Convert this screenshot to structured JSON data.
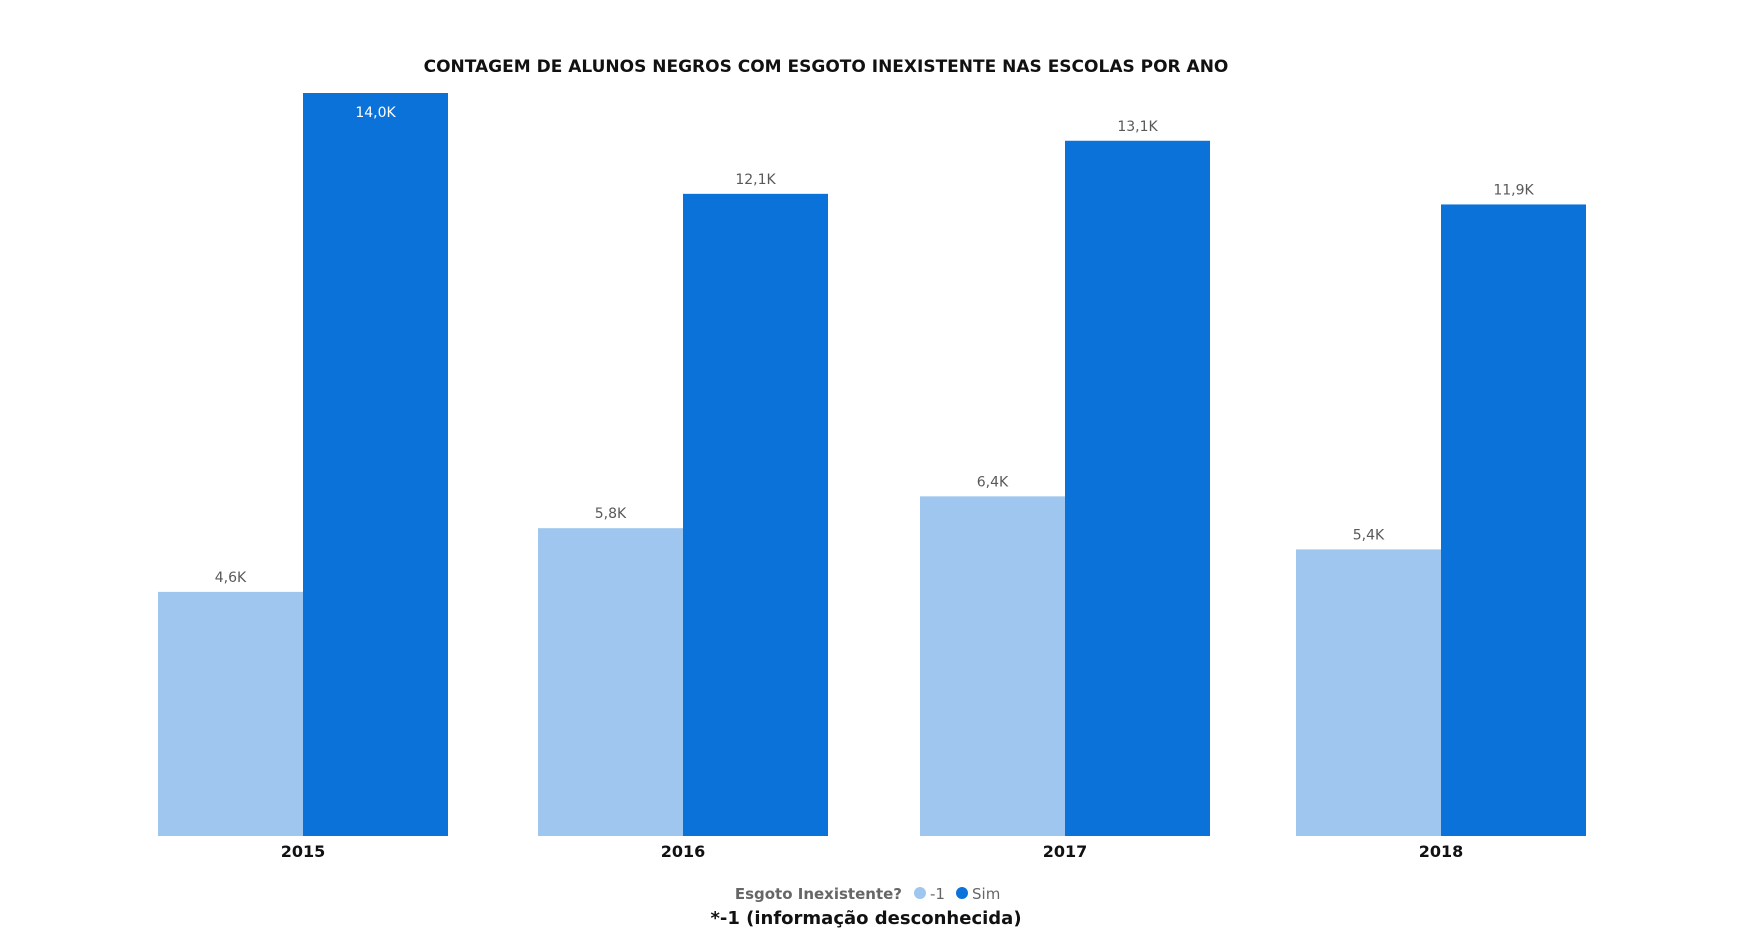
{
  "chart_data": {
    "type": "bar",
    "title": "CONTAGEM DE ALUNOS NEGROS COM ESGOTO INEXISTENTE NAS ESCOLAS POR ANO",
    "categories": [
      "2015",
      "2016",
      "2017",
      "2018"
    ],
    "series": [
      {
        "name": "-1",
        "color": "#9fc6ee",
        "values": [
          4600,
          5800,
          6400,
          5400
        ],
        "labels": [
          "4,6K",
          "5,8K",
          "6,4K",
          "5,4K"
        ]
      },
      {
        "name": "Sim",
        "color": "#0b72d9",
        "values": [
          14000,
          12100,
          13100,
          11900
        ],
        "labels": [
          "14,0K",
          "12,1K",
          "13,1K",
          "11,9K"
        ]
      }
    ],
    "xlabel": "",
    "ylabel": "",
    "ylim": [
      0,
      14000
    ],
    "grid": false,
    "legend": {
      "title": "Esgoto Inexistente?",
      "placement": "bottom-center"
    },
    "footnote": "*-1 (informação desconhecida)"
  }
}
